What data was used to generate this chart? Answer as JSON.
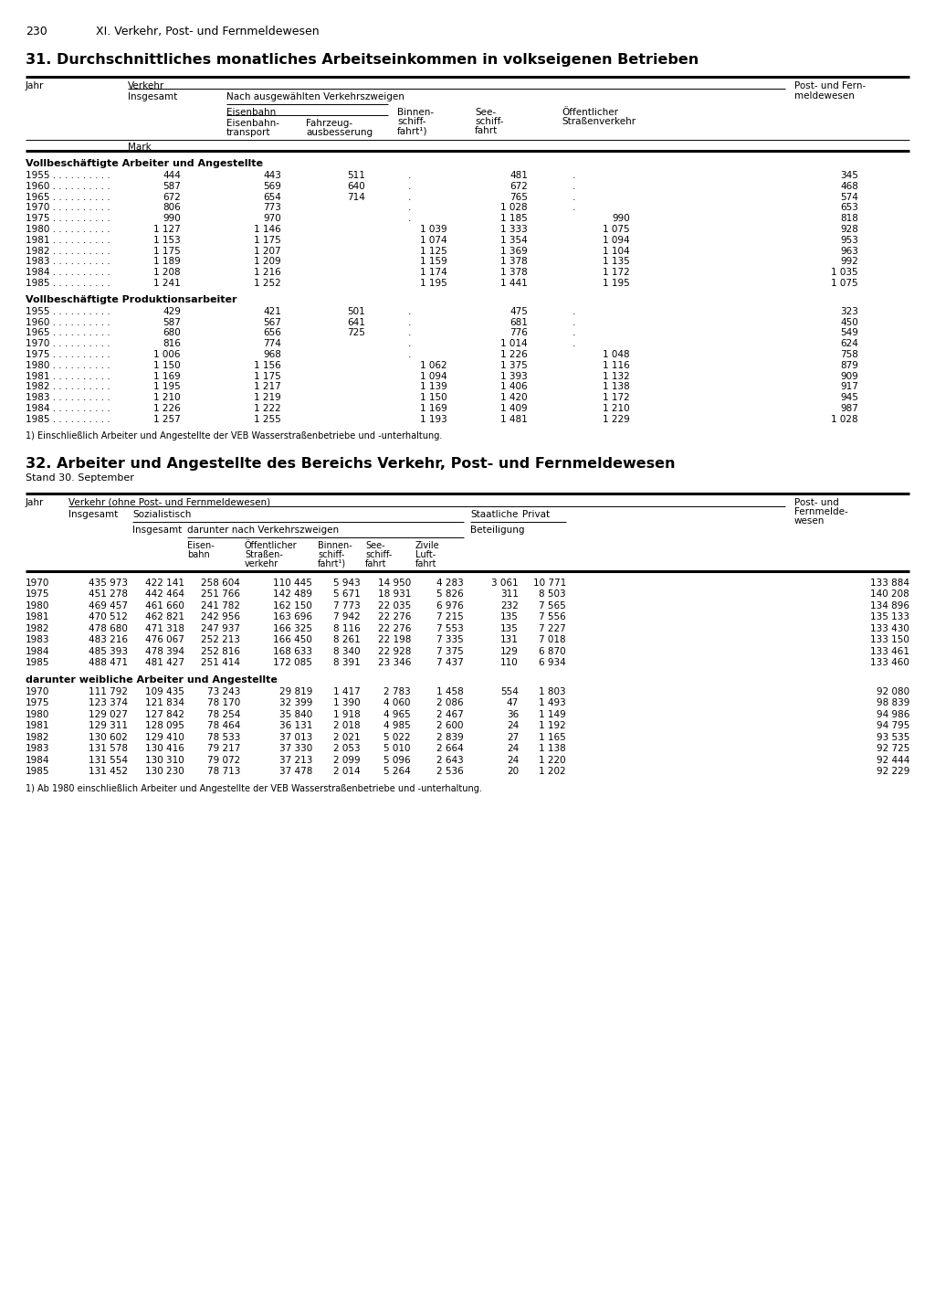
{
  "page_number": "230",
  "page_header": "XI. Verkehr, Post- und Fernmeldewesen",
  "table1_title": "31. Durchschnittliches monatliches Arbeitseinkommen in volkseigenen Betrieben",
  "table1_section1_title": "Vollbeschäftigte Arbeiter und Angestellte",
  "table1_section1_data": [
    {
      "jahr": "1955",
      "insgesamt": "444",
      "eisenbahn_transport": "443",
      "fahrzeug": "511",
      "binnen": ".",
      "see": "481",
      "oeffentlich": ".",
      "post": "345"
    },
    {
      "jahr": "1960",
      "insgesamt": "587",
      "eisenbahn_transport": "569",
      "fahrzeug": "640",
      "binnen": ".",
      "see": "672",
      "oeffentlich": ".",
      "post": "468"
    },
    {
      "jahr": "1965",
      "insgesamt": "672",
      "eisenbahn_transport": "654",
      "fahrzeug": "714",
      "binnen": ".",
      "see": "765",
      "oeffentlich": ".",
      "post": "574"
    },
    {
      "jahr": "1970",
      "insgesamt": "806",
      "eisenbahn_transport": "773",
      "fahrzeug": "",
      "binnen": ".",
      "see": "1 028",
      "oeffentlich": ".",
      "post": "653"
    },
    {
      "jahr": "1975",
      "insgesamt": "990",
      "eisenbahn_transport": "970",
      "fahrzeug": "",
      "binnen": ".",
      "see": "1 185",
      "oeffentlich": "990",
      "post": "818"
    },
    {
      "jahr": "1980",
      "insgesamt": "1 127",
      "eisenbahn_transport": "1 146",
      "fahrzeug": "",
      "binnen": "1 039",
      "see": "1 333",
      "oeffentlich": "1 075",
      "post": "928"
    },
    {
      "jahr": "1981",
      "insgesamt": "1 153",
      "eisenbahn_transport": "1 175",
      "fahrzeug": "",
      "binnen": "1 074",
      "see": "1 354",
      "oeffentlich": "1 094",
      "post": "953"
    },
    {
      "jahr": "1982",
      "insgesamt": "1 175",
      "eisenbahn_transport": "1 207",
      "fahrzeug": "",
      "binnen": "1 125",
      "see": "1 369",
      "oeffentlich": "1 104",
      "post": "963"
    },
    {
      "jahr": "1983",
      "insgesamt": "1 189",
      "eisenbahn_transport": "1 209",
      "fahrzeug": "",
      "binnen": "1 159",
      "see": "1 378",
      "oeffentlich": "1 135",
      "post": "992"
    },
    {
      "jahr": "1984",
      "insgesamt": "1 208",
      "eisenbahn_transport": "1 216",
      "fahrzeug": "",
      "binnen": "1 174",
      "see": "1 378",
      "oeffentlich": "1 172",
      "post": "1 035"
    },
    {
      "jahr": "1985",
      "insgesamt": "1 241",
      "eisenbahn_transport": "1 252",
      "fahrzeug": "",
      "binnen": "1 195",
      "see": "1 441",
      "oeffentlich": "1 195",
      "post": "1 075"
    }
  ],
  "table1_section2_title": "Vollbeschäftigte Produktionsarbeiter",
  "table1_section2_data": [
    {
      "jahr": "1955",
      "insgesamt": "429",
      "eisenbahn_transport": "421",
      "fahrzeug": "501",
      "binnen": ".",
      "see": "475",
      "oeffentlich": ".",
      "post": "323"
    },
    {
      "jahr": "1960",
      "insgesamt": "587",
      "eisenbahn_transport": "567",
      "fahrzeug": "641",
      "binnen": ".",
      "see": "681",
      "oeffentlich": ".",
      "post": "450"
    },
    {
      "jahr": "1965",
      "insgesamt": "680",
      "eisenbahn_transport": "656",
      "fahrzeug": "725",
      "binnen": ".",
      "see": "776",
      "oeffentlich": ".",
      "post": "549"
    },
    {
      "jahr": "1970",
      "insgesamt": "816",
      "eisenbahn_transport": "774",
      "fahrzeug": "",
      "binnen": ".",
      "see": "1 014",
      "oeffentlich": ".",
      "post": "624"
    },
    {
      "jahr": "1975",
      "insgesamt": "1 006",
      "eisenbahn_transport": "968",
      "fahrzeug": "",
      "binnen": ".",
      "see": "1 226",
      "oeffentlich": "1 048",
      "post": "758"
    },
    {
      "jahr": "1980",
      "insgesamt": "1 150",
      "eisenbahn_transport": "1 156",
      "fahrzeug": "",
      "binnen": "1 062",
      "see": "1 375",
      "oeffentlich": "1 116",
      "post": "879"
    },
    {
      "jahr": "1981",
      "insgesamt": "1 169",
      "eisenbahn_transport": "1 175",
      "fahrzeug": "",
      "binnen": "1 094",
      "see": "1 393",
      "oeffentlich": "1 132",
      "post": "909"
    },
    {
      "jahr": "1982",
      "insgesamt": "1 195",
      "eisenbahn_transport": "1 217",
      "fahrzeug": "",
      "binnen": "1 139",
      "see": "1 406",
      "oeffentlich": "1 138",
      "post": "917"
    },
    {
      "jahr": "1983",
      "insgesamt": "1 210",
      "eisenbahn_transport": "1 219",
      "fahrzeug": "",
      "binnen": "1 150",
      "see": "1 420",
      "oeffentlich": "1 172",
      "post": "945"
    },
    {
      "jahr": "1984",
      "insgesamt": "1 226",
      "eisenbahn_transport": "1 222",
      "fahrzeug": "",
      "binnen": "1 169",
      "see": "1 409",
      "oeffentlich": "1 210",
      "post": "987"
    },
    {
      "jahr": "1985",
      "insgesamt": "1 257",
      "eisenbahn_transport": "1 255",
      "fahrzeug": "",
      "binnen": "1 193",
      "see": "1 481",
      "oeffentlich": "1 229",
      "post": "1 028"
    }
  ],
  "table1_footnote": "1) Einschließlich Arbeiter und Angestellte der VEB Wasserstraßenbetriebe und -unterhaltung.",
  "table2_title": "32. Arbeiter und Angestellte des Bereichs Verkehr, Post- und Fernmeldewesen",
  "table2_subtitle": "Stand 30. September",
  "table2_section1_data": [
    {
      "jahr": "1970",
      "insgesamt_v": "435 973",
      "insgesamt_s": "422 141",
      "eisenbahn": "258 604",
      "oeffentlich": "110 445",
      "binnen": "5 943",
      "see": "14 950",
      "zivile": "4 283",
      "staatlich": "3 061",
      "privat": "10 771",
      "post": "133 884"
    },
    {
      "jahr": "1975",
      "insgesamt_v": "451 278",
      "insgesamt_s": "442 464",
      "eisenbahn": "251 766",
      "oeffentlich": "142 489",
      "binnen": "5 671",
      "see": "18 931",
      "zivile": "5 826",
      "staatlich": "311",
      "privat": "8 503",
      "post": "140 208"
    },
    {
      "jahr": "1980",
      "insgesamt_v": "469 457",
      "insgesamt_s": "461 660",
      "eisenbahn": "241 782",
      "oeffentlich": "162 150",
      "binnen": "7 773",
      "see": "22 035",
      "zivile": "6 976",
      "staatlich": "232",
      "privat": "7 565",
      "post": "134 896"
    },
    {
      "jahr": "1981",
      "insgesamt_v": "470 512",
      "insgesamt_s": "462 821",
      "eisenbahn": "242 956",
      "oeffentlich": "163 696",
      "binnen": "7 942",
      "see": "22 276",
      "zivile": "7 215",
      "staatlich": "135",
      "privat": "7 556",
      "post": "135 133"
    },
    {
      "jahr": "1982",
      "insgesamt_v": "478 680",
      "insgesamt_s": "471 318",
      "eisenbahn": "247 937",
      "oeffentlich": "166 325",
      "binnen": "8 116",
      "see": "22 276",
      "zivile": "7 553",
      "staatlich": "135",
      "privat": "7 227",
      "post": "133 430"
    },
    {
      "jahr": "1983",
      "insgesamt_v": "483 216",
      "insgesamt_s": "476 067",
      "eisenbahn": "252 213",
      "oeffentlich": "166 450",
      "binnen": "8 261",
      "see": "22 198",
      "zivile": "7 335",
      "staatlich": "131",
      "privat": "7 018",
      "post": "133 150"
    },
    {
      "jahr": "1984",
      "insgesamt_v": "485 393",
      "insgesamt_s": "478 394",
      "eisenbahn": "252 816",
      "oeffentlich": "168 633",
      "binnen": "8 340",
      "see": "22 928",
      "zivile": "7 375",
      "staatlich": "129",
      "privat": "6 870",
      "post": "133 461"
    },
    {
      "jahr": "1985",
      "insgesamt_v": "488 471",
      "insgesamt_s": "481 427",
      "eisenbahn": "251 414",
      "oeffentlich": "172 085",
      "binnen": "8 391",
      "see": "23 346",
      "zivile": "7 437",
      "staatlich": "110",
      "privat": "6 934",
      "post": "133 460"
    }
  ],
  "table2_section2_title": "darunter weibliche Arbeiter und Angestellte",
  "table2_section2_data": [
    {
      "jahr": "1970",
      "insgesamt_v": "111 792",
      "insgesamt_s": "109 435",
      "eisenbahn": "73 243",
      "oeffentlich": "29 819",
      "binnen": "1 417",
      "see": "2 783",
      "zivile": "1 458",
      "staatlich": "554",
      "privat": "1 803",
      "post": "92 080"
    },
    {
      "jahr": "1975",
      "insgesamt_v": "123 374",
      "insgesamt_s": "121 834",
      "eisenbahn": "78 170",
      "oeffentlich": "32 399",
      "binnen": "1 390",
      "see": "4 060",
      "zivile": "2 086",
      "staatlich": "47",
      "privat": "1 493",
      "post": "98 839"
    },
    {
      "jahr": "1980",
      "insgesamt_v": "129 027",
      "insgesamt_s": "127 842",
      "eisenbahn": "78 254",
      "oeffentlich": "35 840",
      "binnen": "1 918",
      "see": "4 965",
      "zivile": "2 467",
      "staatlich": "36",
      "privat": "1 149",
      "post": "94 986"
    },
    {
      "jahr": "1981",
      "insgesamt_v": "129 311",
      "insgesamt_s": "128 095",
      "eisenbahn": "78 464",
      "oeffentlich": "36 131",
      "binnen": "2 018",
      "see": "4 985",
      "zivile": "2 600",
      "staatlich": "24",
      "privat": "1 192",
      "post": "94 795"
    },
    {
      "jahr": "1982",
      "insgesamt_v": "130 602",
      "insgesamt_s": "129 410",
      "eisenbahn": "78 533",
      "oeffentlich": "37 013",
      "binnen": "2 021",
      "see": "5 022",
      "zivile": "2 839",
      "staatlich": "27",
      "privat": "1 165",
      "post": "93 535"
    },
    {
      "jahr": "1983",
      "insgesamt_v": "131 578",
      "insgesamt_s": "130 416",
      "eisenbahn": "79 217",
      "oeffentlich": "37 330",
      "binnen": "2 053",
      "see": "5 010",
      "zivile": "2 664",
      "staatlich": "24",
      "privat": "1 138",
      "post": "92 725"
    },
    {
      "jahr": "1984",
      "insgesamt_v": "131 554",
      "insgesamt_s": "130 310",
      "eisenbahn": "79 072",
      "oeffentlich": "37 213",
      "binnen": "2 099",
      "see": "5 096",
      "zivile": "2 643",
      "staatlich": "24",
      "privat": "1 220",
      "post": "92 444"
    },
    {
      "jahr": "1985",
      "insgesamt_v": "131 452",
      "insgesamt_s": "130 230",
      "eisenbahn": "78 713",
      "oeffentlich": "37 478",
      "binnen": "2 014",
      "see": "5 264",
      "zivile": "2 536",
      "staatlich": "20",
      "privat": "1 202",
      "post": "92 229"
    }
  ],
  "table2_footnote": "1) Ab 1980 einschließlich Arbeiter und Angestellte der VEB Wasserstraßenbetriebe und -unterhaltung."
}
